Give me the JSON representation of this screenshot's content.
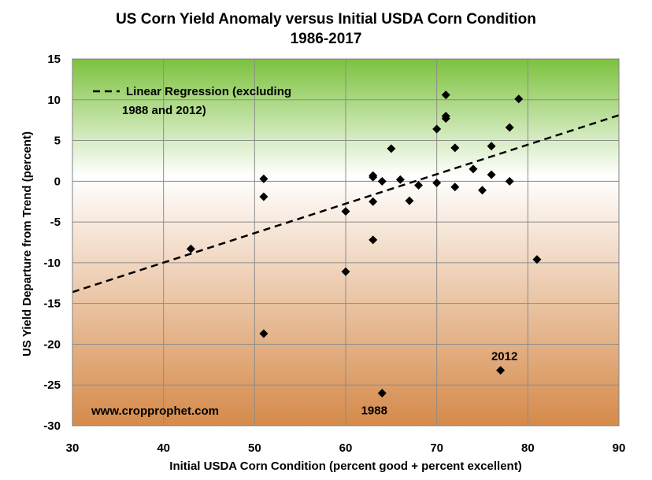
{
  "chart_data": {
    "type": "scatter",
    "title_lines": [
      "US Corn Yield Anomaly versus Initial USDA Corn Condition",
      "1986-2017"
    ],
    "xlabel": "Initial USDA Corn Condition (percent good + percent excellent)",
    "ylabel": "US Yield Departure from Trend (percent)",
    "xlim": [
      30,
      90
    ],
    "ylim": [
      -30,
      15
    ],
    "xticks": [
      30,
      40,
      50,
      60,
      70,
      80,
      90
    ],
    "yticks": [
      15,
      10,
      5,
      0,
      -5,
      -10,
      -15,
      -20,
      -25,
      -30
    ],
    "grid": true,
    "legend": {
      "label_lines": [
        "Linear Regression (excluding",
        "1988 and 2012)"
      ],
      "placement": "top-left"
    },
    "regression_line": {
      "style": "dashed",
      "points": [
        [
          30,
          -13.6
        ],
        [
          90,
          8.1
        ]
      ]
    },
    "background_gradient": [
      "#7cc23e",
      "#ffffff",
      "#d58a4a"
    ],
    "watermark": "www.cropprophet.com",
    "annotations": [
      {
        "text": "1988",
        "x": 64,
        "y": -26
      },
      {
        "text": "2012",
        "x": 77,
        "y": -23.2
      }
    ],
    "points": [
      [
        43,
        -8.3
      ],
      [
        51,
        0.3
      ],
      [
        51,
        -1.9
      ],
      [
        51,
        -18.7
      ],
      [
        60,
        -3.7
      ],
      [
        60,
        -11.1
      ],
      [
        63,
        0.7
      ],
      [
        63,
        0.5
      ],
      [
        63,
        -2.5
      ],
      [
        63,
        -7.2
      ],
      [
        64,
        0.0
      ],
      [
        64,
        -26.0
      ],
      [
        65,
        4.0
      ],
      [
        66,
        0.2
      ],
      [
        67,
        -2.4
      ],
      [
        68,
        -0.5
      ],
      [
        70,
        6.4
      ],
      [
        70,
        -0.2
      ],
      [
        71,
        10.6
      ],
      [
        71,
        8.0
      ],
      [
        71,
        7.7
      ],
      [
        72,
        4.1
      ],
      [
        72,
        -0.7
      ],
      [
        74,
        1.5
      ],
      [
        75,
        -1.1
      ],
      [
        76,
        4.3
      ],
      [
        76,
        0.8
      ],
      [
        77,
        -23.2
      ],
      [
        78,
        6.6
      ],
      [
        78,
        0.0
      ],
      [
        79,
        10.1
      ],
      [
        81,
        -9.6
      ]
    ]
  }
}
